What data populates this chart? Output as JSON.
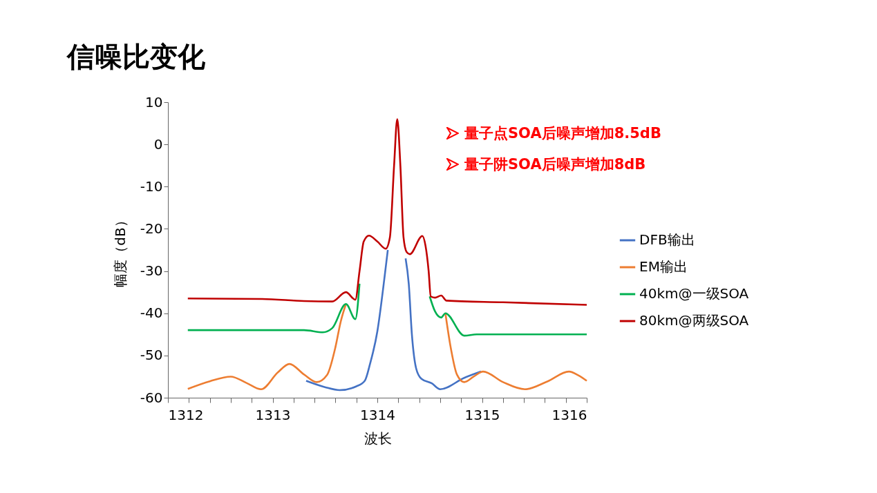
{
  "chart_data": {
    "type": "line",
    "title": "信噪比变化",
    "xlabel": "波长",
    "ylabel": "幅度（dB）",
    "annotations": [
      "量子点SOA后噪声增加8.5dB",
      "量子阱SOA后噪声增加8dB"
    ],
    "xlim": [
      1312,
      1316
    ],
    "ylim": [
      -60,
      10
    ],
    "xticks": [
      1312,
      {
        "value": 1312.2,
        "label": null
      },
      {
        "value": 1312.4,
        "label": null
      },
      {
        "value": 1312.6,
        "label": null
      },
      {
        "value": 1312.8,
        "label": null
      },
      1313,
      {
        "value": 1313.2,
        "label": null
      },
      {
        "value": 1313.4,
        "label": null
      },
      {
        "value": 1313.6,
        "label": null
      },
      {
        "value": 1313.8,
        "label": null
      },
      1314,
      {
        "value": 1314.2,
        "label": null
      },
      {
        "value": 1314.4,
        "label": null
      },
      {
        "value": 1314.6,
        "label": null
      },
      {
        "value": 1314.8,
        "label": null
      },
      1315,
      {
        "value": 1315.2,
        "label": null
      },
      {
        "value": 1315.4,
        "label": null
      },
      {
        "value": 1315.6,
        "label": null
      },
      {
        "value": 1315.8,
        "label": null
      },
      1316
    ],
    "yticks": [
      10,
      0,
      -10,
      -20,
      -30,
      -40,
      -50,
      -60
    ],
    "legend": "right",
    "series": [
      {
        "name": "DFB输出",
        "color": "#4472c4",
        "x": [
          1313.32,
          1313.5,
          1313.64,
          1313.8,
          1313.88,
          1313.93,
          1314.0,
          1314.07,
          1314.1,
          1314.2,
          1314.27,
          1314.3,
          1314.33,
          1314.37,
          1314.42,
          1314.52,
          1314.6,
          1314.83,
          1314.99
        ],
        "values": [
          -56,
          -57.5,
          -58.2,
          -57.3,
          -56,
          -52,
          -44.3,
          -31.2,
          -25,
          null,
          -27,
          -33,
          -45,
          -53,
          -55.5,
          -56.6,
          -58,
          -55.3,
          -53.8
        ]
      },
      {
        "name": "EM输出",
        "color": "#ed7d31",
        "x": [
          1312.19,
          1312.4,
          1312.6,
          1312.75,
          1312.89,
          1313.05,
          1313.16,
          1313.3,
          1313.42,
          1313.52,
          1313.6,
          1313.65,
          1313.7,
          1314.2,
          1314.65,
          1314.7,
          1314.76,
          1314.83,
          1314.92,
          1315.01,
          1315.2,
          1315.41,
          1315.62,
          1315.83,
          1315.92,
          1316
        ],
        "values": [
          -57.9,
          -56.1,
          -55,
          -56.5,
          -58,
          -54,
          -52,
          -54.5,
          -56.3,
          -54.6,
          -48,
          -42,
          -37.8,
          null,
          -40,
          -48,
          -54.5,
          -56.3,
          -55,
          -53.8,
          -56.3,
          -58,
          -56.2,
          -53.8,
          -54.7,
          -56
        ]
      },
      {
        "name": "40km@一级SOA",
        "color": "#00b050",
        "x": [
          1312.19,
          1313.3,
          1313.48,
          1313.57,
          1313.7,
          1313.79,
          1313.83,
          1314.2,
          1314.5,
          1314.55,
          1314.61,
          1314.65,
          1314.83,
          1314.95,
          1316
        ],
        "values": [
          -44,
          -44,
          -44.5,
          -43.5,
          -37.8,
          -41.4,
          -33,
          null,
          -36,
          -39.5,
          -41,
          -40,
          -45.3,
          -45,
          -45
        ]
      },
      {
        "name": "80km@两级SOA",
        "color": "#c00000",
        "x": [
          1312.19,
          1312.9,
          1313.3,
          1313.57,
          1313.7,
          1313.79,
          1313.83,
          1313.87,
          1313.92,
          1314.0,
          1314.08,
          1314.12,
          1314.16,
          1314.19,
          1314.22,
          1314.25,
          1314.28,
          1314.31,
          1314.43,
          1314.46,
          1314.49,
          1314.51,
          1314.55,
          1314.61,
          1314.66,
          1315.2,
          1316
        ],
        "values": [
          -36.5,
          -36.6,
          -37.1,
          -37.2,
          -35,
          -36.8,
          -30,
          -23,
          -21.6,
          -23,
          -24.7,
          -22,
          -5,
          6,
          -5,
          -22,
          -25.5,
          -26,
          -21.7,
          -24,
          -30,
          -36,
          -36.3,
          -35.8,
          -37,
          -37.4,
          -38
        ]
      }
    ]
  }
}
